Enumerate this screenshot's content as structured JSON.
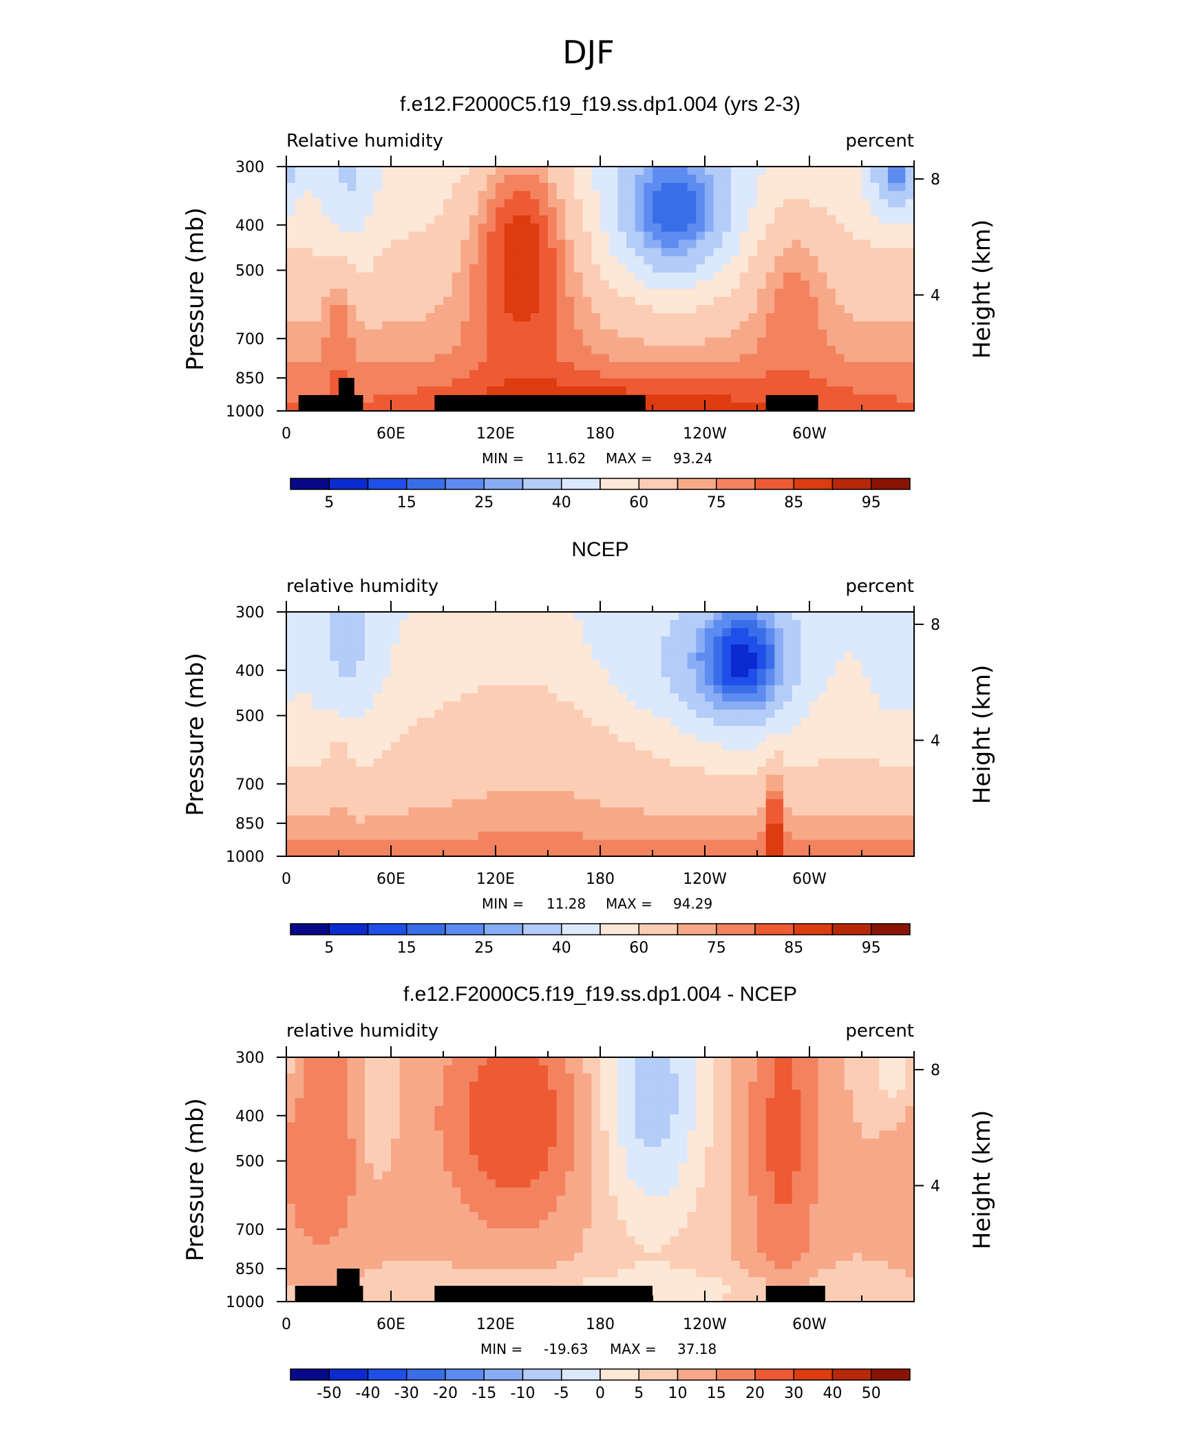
{
  "figure": {
    "title": "DJF"
  },
  "colors": {
    "palette": [
      "#08088a",
      "#0b2bd0",
      "#1f4fe8",
      "#3a6ee9",
      "#5d8cf0",
      "#89adf5",
      "#b3ccf8",
      "#dce8fc",
      "#fde7d6",
      "#fbcdb4",
      "#f7a889",
      "#f3835f",
      "#ee5a33",
      "#dd3b10",
      "#b82808",
      "#8a1403"
    ],
    "land": "#000000"
  },
  "chart_data": [
    {
      "type": "heatmap",
      "title": "f.e12.F2000C5.f19_f19.ss.dp1.004 (yrs 2-3)",
      "variable_label": "Relative humidity",
      "units_label": "percent",
      "ylabel": "Pressure (mb)",
      "ylabel_right": "Height (km)",
      "x_ticks": [
        "0",
        "60E",
        "120E",
        "180",
        "120W",
        "60W"
      ],
      "y_ticks": [
        "300",
        "400",
        "500",
        "700",
        "850",
        "1000"
      ],
      "y_ticks_right": [
        "8",
        "4"
      ],
      "stats": {
        "min_label": "MIN =",
        "min": "11.62",
        "max_label": "MAX =",
        "max": "93.24"
      },
      "colorbar_labels": [
        "5",
        "15",
        "25",
        "40",
        "60",
        "75",
        "85",
        "95"
      ],
      "land_blocks": [
        [
          7,
          44,
          925,
          1000
        ],
        [
          30,
          39,
          850,
          1000
        ],
        [
          85,
          206,
          925,
          1000
        ],
        [
          275,
          305,
          925,
          1000
        ]
      ]
    },
    {
      "type": "heatmap",
      "title": "NCEP",
      "variable_label": "relative humidity",
      "units_label": "percent",
      "ylabel": "Pressure (mb)",
      "ylabel_right": "Height (km)",
      "x_ticks": [
        "0",
        "60E",
        "120E",
        "180",
        "120W",
        "60W"
      ],
      "y_ticks": [
        "300",
        "400",
        "500",
        "700",
        "850",
        "1000"
      ],
      "y_ticks_right": [
        "8",
        "4"
      ],
      "stats": {
        "min_label": "MIN =",
        "min": "11.28",
        "max_label": "MAX =",
        "max": "94.29"
      },
      "colorbar_labels": [
        "5",
        "15",
        "25",
        "40",
        "60",
        "75",
        "85",
        "95"
      ],
      "land_blocks": []
    },
    {
      "type": "heatmap",
      "title": "f.e12.F2000C5.f19_f19.ss.dp1.004 - NCEP",
      "variable_label": "relative humidity",
      "units_label": "percent",
      "ylabel": "Pressure (mb)",
      "ylabel_right": "Height (km)",
      "x_ticks": [
        "0",
        "60E",
        "120E",
        "180",
        "120W",
        "60W"
      ],
      "y_ticks": [
        "300",
        "400",
        "500",
        "700",
        "850",
        "1000"
      ],
      "y_ticks_right": [
        "8",
        "4"
      ],
      "stats": {
        "min_label": "MIN =",
        "min": "-19.63",
        "max_label": "MAX =",
        "max": "37.18"
      },
      "colorbar_labels": [
        "-50",
        "-40",
        "-30",
        "-20",
        "-15",
        "-10",
        "-5",
        "0",
        "5",
        "10",
        "15",
        "20",
        "30",
        "40",
        "50"
      ],
      "land_blocks": [
        [
          5,
          44,
          925,
          1000
        ],
        [
          29,
          42,
          850,
          1000
        ],
        [
          85,
          210,
          925,
          1000
        ],
        [
          275,
          309,
          925,
          1000
        ]
      ]
    }
  ]
}
